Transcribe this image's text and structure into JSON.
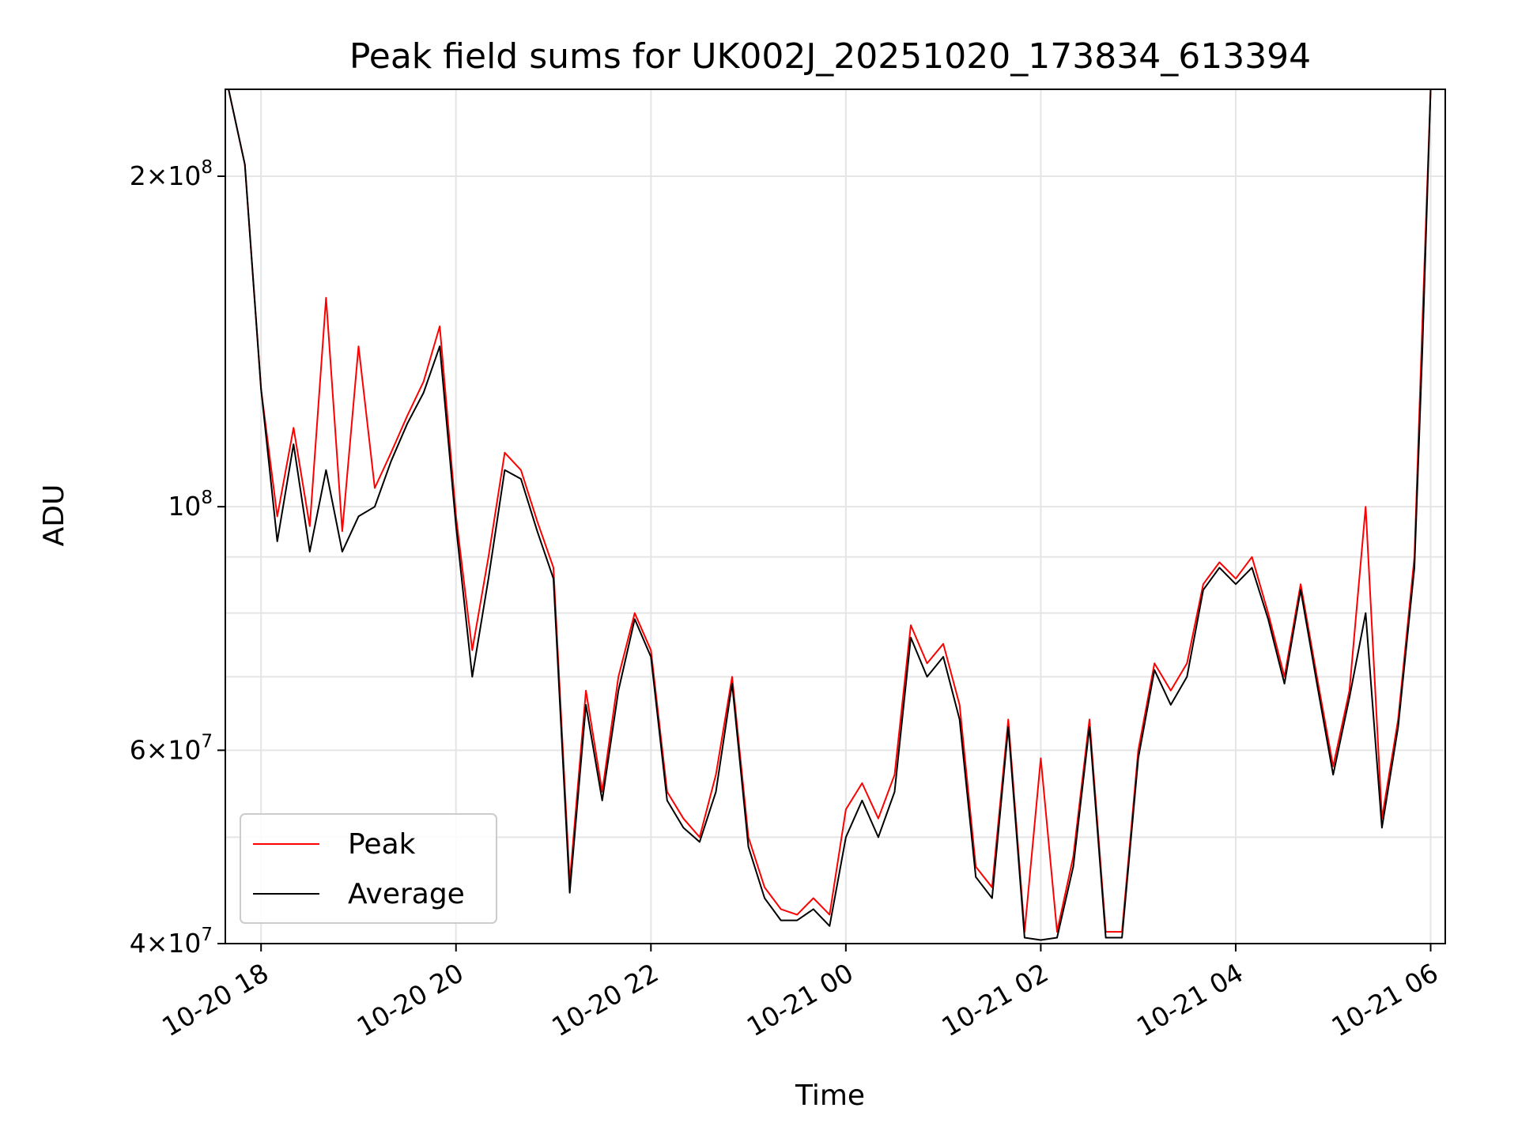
{
  "chart_data": {
    "type": "line",
    "title": "Peak field sums for UK002J_20251020_173834_613394",
    "xlabel": "Time",
    "ylabel": "ADU",
    "yscale": "log",
    "ylim": [
      40000000,
      240000000
    ],
    "xlim": [
      "2025-10-20T17:38",
      "2025-10-21T06:09"
    ],
    "grid": true,
    "legend_position": "lower-left",
    "x_ticks": [
      {
        "value": "2025-10-20T18:00",
        "label": "10-20 18"
      },
      {
        "value": "2025-10-20T20:00",
        "label": "10-20 20"
      },
      {
        "value": "2025-10-20T22:00",
        "label": "10-20 22"
      },
      {
        "value": "2025-10-21T00:00",
        "label": "10-21 00"
      },
      {
        "value": "2025-10-21T02:00",
        "label": "10-21 02"
      },
      {
        "value": "2025-10-21T04:00",
        "label": "10-21 04"
      },
      {
        "value": "2025-10-21T06:00",
        "label": "10-21 06"
      }
    ],
    "y_ticks": [
      {
        "value": 40000000,
        "mantissa": "4",
        "exponent": "7"
      },
      {
        "value": 60000000,
        "mantissa": "6",
        "exponent": "7"
      },
      {
        "value": 100000000,
        "mantissa": "",
        "exponent": "8"
      },
      {
        "value": 200000000,
        "mantissa": "2",
        "exponent": "8"
      }
    ],
    "y_minor_grid": [
      50000000,
      70000000,
      80000000,
      90000000
    ],
    "x": [
      "2025-10-20T17:40",
      "2025-10-20T17:50",
      "2025-10-20T18:00",
      "2025-10-20T18:10",
      "2025-10-20T18:20",
      "2025-10-20T18:30",
      "2025-10-20T18:40",
      "2025-10-20T18:50",
      "2025-10-20T19:00",
      "2025-10-20T19:10",
      "2025-10-20T19:20",
      "2025-10-20T19:30",
      "2025-10-20T19:40",
      "2025-10-20T19:50",
      "2025-10-20T20:00",
      "2025-10-20T20:10",
      "2025-10-20T20:20",
      "2025-10-20T20:30",
      "2025-10-20T20:40",
      "2025-10-20T20:50",
      "2025-10-20T21:00",
      "2025-10-20T21:10",
      "2025-10-20T21:20",
      "2025-10-20T21:30",
      "2025-10-20T21:40",
      "2025-10-20T21:50",
      "2025-10-20T22:00",
      "2025-10-20T22:10",
      "2025-10-20T22:20",
      "2025-10-20T22:30",
      "2025-10-20T22:40",
      "2025-10-20T22:50",
      "2025-10-20T23:00",
      "2025-10-20T23:10",
      "2025-10-20T23:20",
      "2025-10-20T23:30",
      "2025-10-20T23:40",
      "2025-10-20T23:50",
      "2025-10-21T00:00",
      "2025-10-21T00:10",
      "2025-10-21T00:20",
      "2025-10-21T00:30",
      "2025-10-21T00:40",
      "2025-10-21T00:50",
      "2025-10-21T01:00",
      "2025-10-21T01:10",
      "2025-10-21T01:20",
      "2025-10-21T01:30",
      "2025-10-21T01:40",
      "2025-10-21T01:50",
      "2025-10-21T02:00",
      "2025-10-21T02:10",
      "2025-10-21T02:20",
      "2025-10-21T02:30",
      "2025-10-21T02:40",
      "2025-10-21T02:50",
      "2025-10-21T03:00",
      "2025-10-21T03:10",
      "2025-10-21T03:20",
      "2025-10-21T03:30",
      "2025-10-21T03:40",
      "2025-10-21T03:50",
      "2025-10-21T04:00",
      "2025-10-21T04:10",
      "2025-10-21T04:20",
      "2025-10-21T04:30",
      "2025-10-21T04:40",
      "2025-10-21T04:50",
      "2025-10-21T05:00",
      "2025-10-21T05:10",
      "2025-10-21T05:20",
      "2025-10-21T05:30",
      "2025-10-21T05:40",
      "2025-10-21T05:50",
      "2025-10-21T05:55",
      "2025-10-21T06:00"
    ],
    "series": [
      {
        "name": "Peak",
        "color": "#ff0000",
        "values": [
          240000000,
          205000000,
          128000000,
          98000000,
          118000000,
          96000000,
          155000000,
          95000000,
          140000000,
          104000000,
          112000000,
          121000000,
          130000000,
          146000000,
          98000000,
          74000000,
          90000000,
          112000000,
          108000000,
          97000000,
          88000000,
          45500000,
          68000000,
          55000000,
          70000000,
          80000000,
          74000000,
          55000000,
          52000000,
          50000000,
          57000000,
          70000000,
          50000000,
          45000000,
          43000000,
          42500000,
          44000000,
          42500000,
          53000000,
          56000000,
          52000000,
          57000000,
          78000000,
          72000000,
          75000000,
          66000000,
          47000000,
          45000000,
          64000000,
          41000000,
          59000000,
          41000000,
          48000000,
          64000000,
          41000000,
          41000000,
          60000000,
          72000000,
          68000000,
          72000000,
          85000000,
          89000000,
          86000000,
          90000000,
          80000000,
          70000000,
          85000000,
          70000000,
          58000000,
          68000000,
          100000000,
          52000000,
          64000000,
          90000000,
          148000000,
          240000000
        ]
      },
      {
        "name": "Average",
        "color": "#000000",
        "values": [
          240000000,
          205000000,
          128000000,
          93000000,
          114000000,
          91000000,
          108000000,
          91000000,
          98000000,
          100000000,
          110000000,
          119000000,
          127000000,
          140000000,
          96000000,
          70000000,
          86000000,
          108000000,
          106000000,
          95000000,
          86000000,
          44500000,
          66000000,
          54000000,
          68000000,
          79000000,
          73000000,
          54000000,
          51000000,
          49500000,
          55000000,
          69000000,
          49000000,
          44000000,
          42000000,
          42000000,
          43000000,
          41500000,
          50000000,
          54000000,
          50000000,
          55000000,
          76000000,
          70000000,
          73000000,
          64000000,
          46000000,
          44000000,
          63000000,
          40500000,
          40300000,
          40500000,
          47000000,
          63000000,
          40500000,
          40500000,
          59000000,
          71000000,
          66000000,
          70000000,
          84000000,
          88000000,
          85000000,
          88000000,
          79000000,
          69000000,
          84000000,
          69000000,
          57000000,
          67000000,
          80000000,
          51000000,
          63000000,
          88000000,
          140000000,
          240000000
        ]
      }
    ]
  }
}
